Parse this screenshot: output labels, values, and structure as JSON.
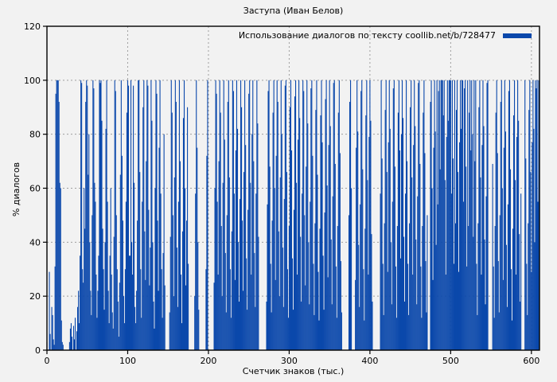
{
  "colors": {
    "background": "#f2f2f2",
    "bar": "#0b48ab",
    "grid": "#9e9e9e",
    "border": "#000000",
    "text": "#000000"
  },
  "chart_data": {
    "type": "bar",
    "style": "impulses",
    "title": "Заступа (Иван Белов)",
    "legend": "Использование диалогов по тексту coollib.net/b/728477",
    "legend_position": "top-right-inside",
    "xlabel": "Счетчик знаков (тыс.)",
    "ylabel": "% диалогов",
    "xlim": [
      0,
      610
    ],
    "ylim": [
      0,
      120
    ],
    "xticks": [
      0,
      100,
      200,
      300,
      400,
      500,
      600
    ],
    "yticks": [
      0,
      20,
      40,
      60,
      80,
      100,
      120
    ],
    "grid": true,
    "x_start": 0,
    "x_step": 1,
    "values": [
      3,
      0,
      0,
      29,
      6,
      0,
      16,
      13,
      4,
      2,
      31,
      95,
      100,
      100,
      100,
      92,
      62,
      60,
      11,
      3,
      2,
      0,
      0,
      0,
      0,
      0,
      0,
      0,
      3,
      8,
      10,
      5,
      0,
      9,
      4,
      12,
      0,
      7,
      16,
      22,
      10,
      35,
      100,
      99,
      30,
      25,
      60,
      45,
      92,
      100,
      98,
      65,
      80,
      40,
      22,
      13,
      50,
      100,
      97,
      62,
      55,
      28,
      12,
      22,
      35,
      100,
      99,
      100,
      85,
      45,
      30,
      15,
      40,
      82,
      100,
      55,
      22,
      10,
      35,
      60,
      28,
      14,
      8,
      42,
      100,
      96,
      50,
      30,
      18,
      5,
      25,
      65,
      100,
      72,
      48,
      20,
      10,
      30,
      55,
      88,
      100,
      98,
      35,
      35,
      100,
      40,
      28,
      98,
      62,
      16,
      10,
      22,
      48,
      100,
      100,
      66,
      30,
      12,
      55,
      90,
      100,
      44,
      26,
      70,
      100,
      98,
      52,
      24,
      38,
      100,
      85,
      40,
      18,
      8,
      60,
      100,
      95,
      48,
      22,
      75,
      100,
      58,
      30,
      12,
      36,
      80,
      24,
      0,
      0,
      0,
      0,
      0,
      14,
      42,
      100,
      88,
      50,
      20,
      64,
      100,
      92,
      38,
      16,
      55,
      100,
      70,
      28,
      10,
      44,
      86,
      100,
      60,
      24,
      48,
      90,
      32,
      0,
      0,
      0,
      0,
      0,
      0,
      0,
      20,
      58,
      100,
      75,
      40,
      15,
      0,
      0,
      0,
      0,
      0,
      0,
      0,
      0,
      30,
      72,
      100,
      0,
      0,
      0,
      0,
      0,
      0,
      0,
      25,
      60,
      100,
      95,
      55,
      28,
      70,
      100,
      88,
      46,
      20,
      62,
      100,
      78,
      36,
      14,
      50,
      92,
      100,
      64,
      30,
      12,
      44,
      100,
      96,
      58,
      26,
      74,
      100,
      82,
      40,
      18,
      56,
      100,
      90,
      48,
      22,
      66,
      100,
      76,
      34,
      15,
      52,
      95,
      100,
      62,
      28,
      80,
      100,
      70,
      36,
      16,
      58,
      100,
      84,
      42,
      0,
      0,
      0,
      0,
      0,
      0,
      0,
      0,
      0,
      18,
      54,
      96,
      100,
      68,
      32,
      14,
      48,
      88,
      100,
      60,
      26,
      72,
      100,
      92,
      44,
      20,
      64,
      100,
      80,
      38,
      16,
      56,
      98,
      100,
      66,
      30,
      12,
      46,
      90,
      100,
      74,
      34,
      15,
      52,
      94,
      100,
      62,
      28,
      78,
      100,
      86,
      42,
      18,
      58,
      100,
      96,
      50,
      24,
      68,
      100,
      84,
      40,
      17,
      55,
      97,
      100,
      72,
      32,
      13,
      47,
      89,
      100,
      65,
      29,
      11,
      45,
      87,
      100,
      77,
      35,
      15,
      51,
      93,
      100,
      61,
      27,
      76,
      100,
      83,
      41,
      17,
      57,
      99,
      100,
      69,
      31,
      12,
      46,
      88,
      100,
      73,
      33,
      14,
      0,
      0,
      0,
      0,
      0,
      0,
      0,
      0,
      50,
      92,
      100,
      60,
      0,
      0,
      0,
      0,
      26,
      75,
      100,
      81,
      39,
      16,
      54,
      96,
      100,
      67,
      30,
      11,
      45,
      87,
      100,
      63,
      28,
      79,
      100,
      85,
      43,
      18,
      0,
      0,
      0,
      0,
      0,
      0,
      0,
      0,
      0,
      58,
      100,
      71,
      32,
      13,
      47,
      89,
      100,
      66,
      29,
      77,
      100,
      82,
      40,
      17,
      55,
      97,
      100,
      68,
      31,
      12,
      46,
      88,
      100,
      74,
      34,
      80,
      100,
      86,
      42,
      18,
      58,
      100,
      70,
      32,
      13,
      47,
      90,
      100,
      64,
      28,
      76,
      100,
      83,
      41,
      17,
      57,
      99,
      100,
      69,
      31,
      12,
      46,
      88,
      100,
      73,
      33,
      14,
      50,
      0,
      0,
      0,
      92,
      100,
      60,
      26,
      75,
      100,
      81,
      39,
      100,
      54,
      96,
      100,
      67,
      100,
      100,
      100,
      87,
      100,
      63,
      28,
      79,
      100,
      85,
      100,
      100,
      100,
      58,
      100,
      71,
      32,
      100,
      47,
      89,
      100,
      66,
      29,
      77,
      100,
      82,
      100,
      100,
      55,
      97,
      100,
      68,
      31,
      100,
      46,
      88,
      100,
      74,
      100,
      80,
      42,
      100,
      70,
      100,
      32,
      13,
      47,
      90,
      100,
      64,
      28,
      76,
      100,
      83,
      41,
      17,
      57,
      99,
      100,
      0,
      0,
      0,
      0,
      0,
      69,
      31,
      12,
      46,
      88,
      100,
      73,
      33,
      14,
      50,
      92,
      100,
      60,
      26,
      75,
      100,
      81,
      39,
      16,
      54,
      96,
      100,
      67,
      30,
      11,
      45,
      87,
      100,
      63,
      28,
      79,
      100,
      85,
      43,
      18,
      58,
      0,
      0,
      0,
      0,
      100,
      71,
      32,
      13,
      47,
      89,
      100,
      66,
      29,
      77,
      100,
      82,
      40,
      100,
      97,
      100,
      55,
      100
    ]
  }
}
